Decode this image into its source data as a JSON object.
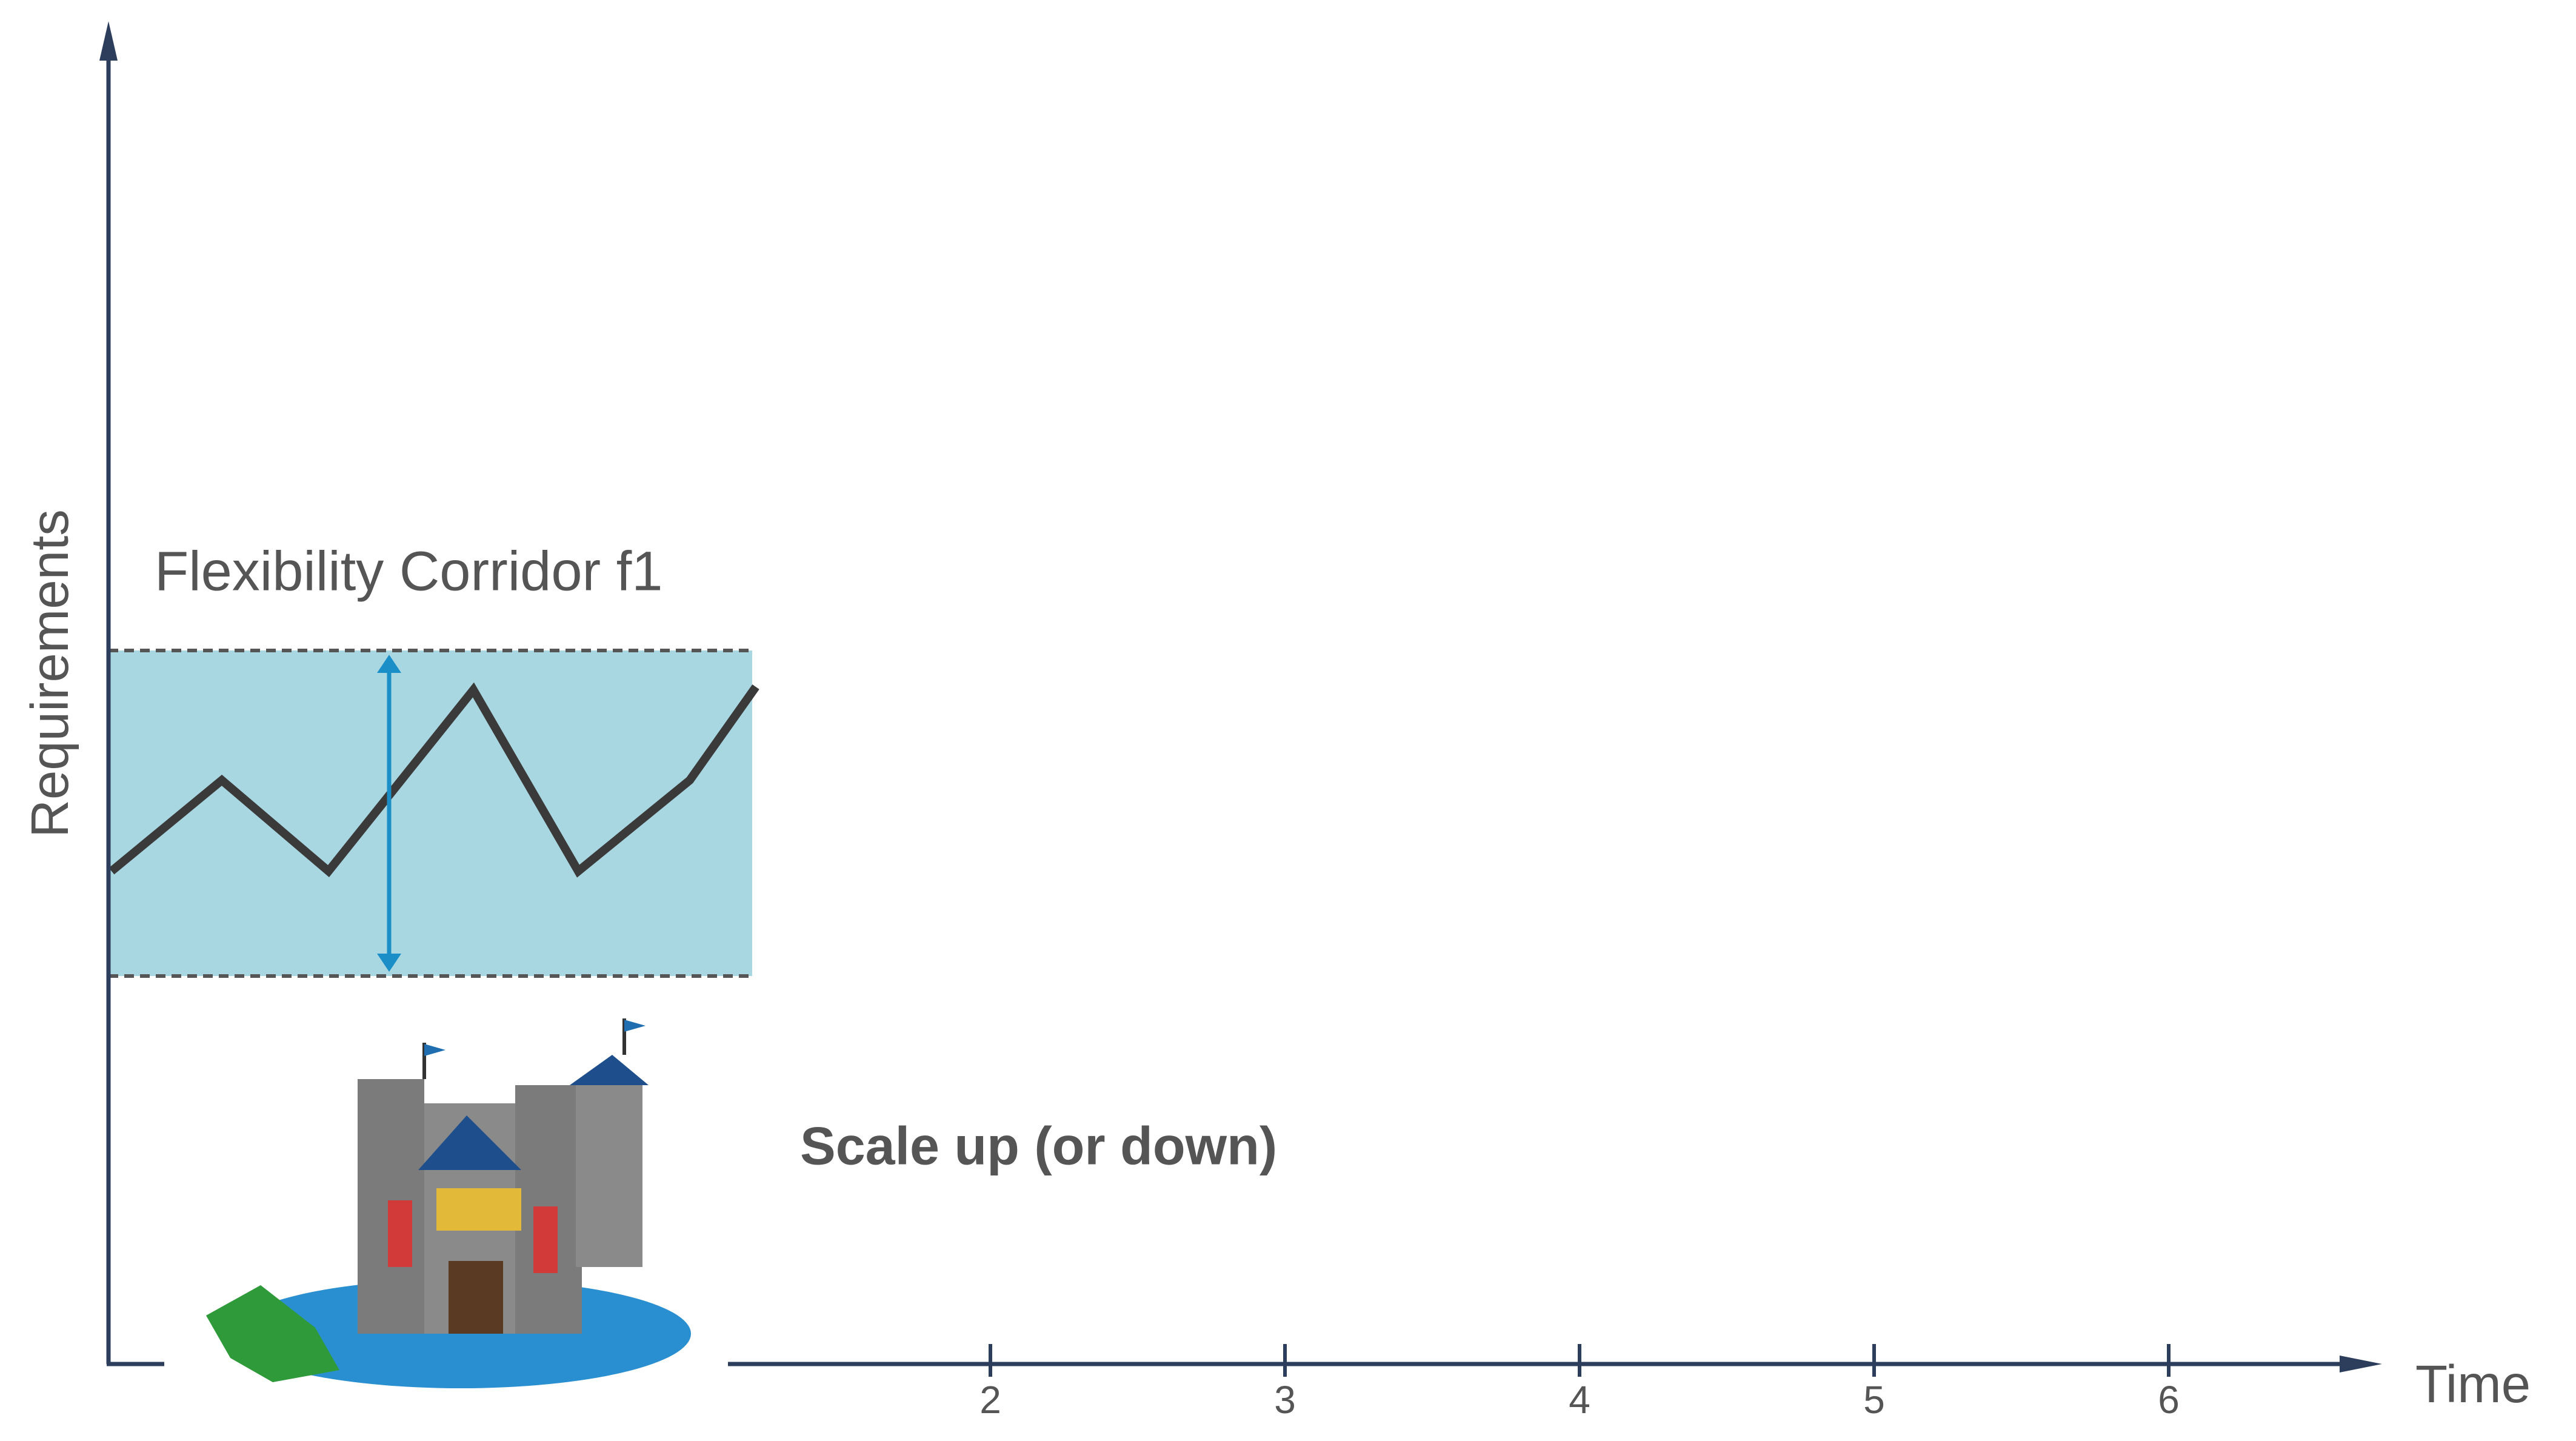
{
  "axes": {
    "y_label": "Requirements",
    "x_label": "Time",
    "x_tick_labels": [
      "2",
      "3",
      "4",
      "5",
      "6"
    ]
  },
  "corridor": {
    "label": "Flexibility Corridor f1"
  },
  "caption": "Scale up (or down)"
}
